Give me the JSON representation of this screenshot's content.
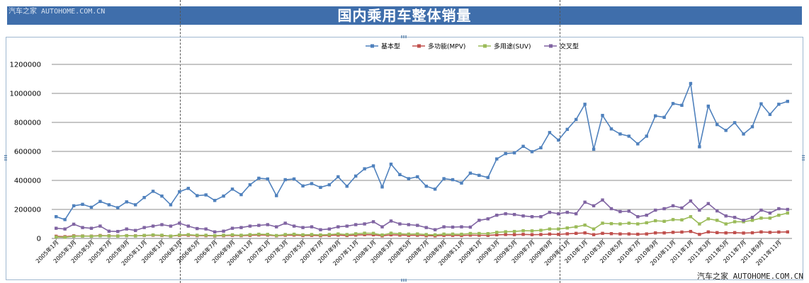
{
  "banner": {
    "title": "国内乘用车整体销量",
    "watermark": "汽车之家 AUTOHOME.COM.CN"
  },
  "footer": {
    "watermark": "汽车之家 AUTOHOME.COM.CN"
  },
  "colors": {
    "banner": "#3f6eab",
    "grid": "#808080"
  },
  "chart_data": {
    "type": "line",
    "title": "",
    "xlabel": "",
    "ylabel": "",
    "ylim": [
      0,
      1200000
    ],
    "yticks": [
      0,
      200000,
      400000,
      600000,
      800000,
      1000000,
      1200000
    ],
    "ytick_labels": [
      "0",
      "200000",
      "400000",
      "600000",
      "800000",
      "1000000",
      "1200000"
    ],
    "grid": true,
    "legend_position": "top-center",
    "x": [
      "2005年1月",
      "2005年2月",
      "2005年3月",
      "2005年4月",
      "2005年5月",
      "2005年6月",
      "2005年7月",
      "2005年8月",
      "2005年9月",
      "2005年10月",
      "2005年11月",
      "2005年12月",
      "2006年1月",
      "2006年2月",
      "2006年3月",
      "2006年4月",
      "2006年5月",
      "2006年6月",
      "2006年7月",
      "2006年8月",
      "2006年9月",
      "2006年10月",
      "2006年11月",
      "2006年12月",
      "2007年1月",
      "2007年2月",
      "2007年3月",
      "2007年4月",
      "2007年5月",
      "2007年6月",
      "2007年7月",
      "2007年8月",
      "2007年9月",
      "2007年10月",
      "2007年11月",
      "2007年12月",
      "2008年1月",
      "2008年2月",
      "2008年3月",
      "2008年4月",
      "2008年5月",
      "2008年6月",
      "2008年7月",
      "2008年8月",
      "2008年9月",
      "2008年10月",
      "2008年11月",
      "2008年12月",
      "2009年1月",
      "2009年2月",
      "2009年3月",
      "2009年4月",
      "2009年5月",
      "2009年6月",
      "2009年7月",
      "2009年8月",
      "2009年9月",
      "2009年10月",
      "2009年11月",
      "2009年12月",
      "2010年1月",
      "2010年2月",
      "2010年3月",
      "2010年4月",
      "2010年5月",
      "2010年6月",
      "2010年7月",
      "2010年8月",
      "2010年9月",
      "2010年10月",
      "2010年11月",
      "2010年12月",
      "2011年1月",
      "2011年2月",
      "2011年3月",
      "2011年4月",
      "2011年5月",
      "2011年6月",
      "2011年7月",
      "2011年8月",
      "2011年9月",
      "2011年10月",
      "2011年11月",
      "2011年12月"
    ],
    "x_tick_labels": [
      "2005年1月",
      "2005年3月",
      "2005年5月",
      "2005年7月",
      "2005年9月",
      "2005年11月",
      "2006年1月",
      "2006年3月",
      "2006年5月",
      "2006年7月",
      "2006年9月",
      "2006年11月",
      "2007年1月",
      "2007年3月",
      "2007年5月",
      "2007年7月",
      "2007年9月",
      "2007年11月",
      "2008年1月",
      "2008年3月",
      "2008年5月",
      "2008年7月",
      "2008年9月",
      "2008年11月",
      "2009年1月",
      "2009年3月",
      "2009年5月",
      "2009年7月",
      "2009年9月",
      "2009年11月",
      "2010年1月",
      "2010年3月",
      "2010年5月",
      "2010年7月",
      "2010年9月",
      "2010年11月",
      "2011年1月",
      "2011年3月",
      "2011年5月",
      "2011年7月",
      "2011年9月",
      "2011年11月"
    ],
    "series": [
      {
        "name": "基本型",
        "color": "#4f81bd",
        "marker": "square",
        "values": [
          150000,
          130000,
          225000,
          235000,
          215000,
          255000,
          232000,
          212000,
          252000,
          232000,
          282000,
          325000,
          292000,
          232000,
          322000,
          345000,
          295000,
          300000,
          262000,
          292000,
          340000,
          302000,
          370000,
          415000,
          410000,
          295000,
          405000,
          410000,
          362000,
          378000,
          352000,
          370000,
          425000,
          360000,
          430000,
          480000,
          500000,
          355000,
          512000,
          440000,
          412000,
          425000,
          360000,
          340000,
          412000,
          405000,
          382000,
          450000,
          435000,
          420000,
          548000,
          585000,
          590000,
          635000,
          598000,
          625000,
          730000,
          678000,
          752000,
          820000,
          925000,
          615000,
          848000,
          755000,
          720000,
          705000,
          652000,
          705000,
          845000,
          835000,
          930000,
          918000,
          1068000,
          632000,
          912000,
          785000,
          745000,
          798000,
          720000,
          770000,
          928000,
          855000,
          925000,
          945000
        ]
      },
      {
        "name": "多功能(MPV)",
        "color": "#c0504d",
        "marker": "square",
        "values": [
          15000,
          12000,
          18000,
          17000,
          16000,
          20000,
          18000,
          17000,
          19000,
          18000,
          20000,
          22000,
          20000,
          16000,
          21000,
          22000,
          19000,
          19000,
          17000,
          19000,
          21000,
          19000,
          21000,
          24000,
          23000,
          18000,
          22000,
          23000,
          20000,
          21000,
          19000,
          21000,
          23000,
          20000,
          23000,
          26000,
          25000,
          18000,
          25000,
          23000,
          21000,
          22000,
          19000,
          18000,
          21000,
          21000,
          20000,
          23000,
          22000,
          21000,
          25000,
          27000,
          26000,
          28000,
          26000,
          27000,
          30000,
          28000,
          32000,
          35000,
          38000,
          26000,
          35000,
          33000,
          31000,
          31000,
          29000,
          31000,
          38000,
          38000,
          42000,
          44000,
          48000,
          28000,
          45000,
          40000,
          38000,
          40000,
          37000,
          39000,
          45000,
          42000,
          44000,
          45000
        ]
      },
      {
        "name": "多用途(SUV)",
        "color": "#9bbb59",
        "marker": "square",
        "values": [
          10000,
          8000,
          15000,
          16000,
          15000,
          18000,
          17000,
          16000,
          19000,
          17000,
          21000,
          24000,
          22000,
          16000,
          24000,
          26000,
          22000,
          22000,
          19000,
          22000,
          25000,
          22000,
          26000,
          29000,
          28000,
          20000,
          27000,
          29000,
          25000,
          27000,
          24000,
          27000,
          31000,
          27000,
          32000,
          36000,
          35000,
          24000,
          36000,
          32000,
          30000,
          31000,
          27000,
          25000,
          30000,
          30000,
          29000,
          34000,
          34000,
          33000,
          42000,
          46000,
          48000,
          53000,
          52000,
          56000,
          65000,
          65000,
          72000,
          80000,
          92000,
          65000,
          105000,
          102000,
          100000,
          105000,
          100000,
          108000,
          122000,
          118000,
          130000,
          128000,
          150000,
          100000,
          135000,
          125000,
          100000,
          115000,
          115000,
          125000,
          140000,
          140000,
          160000,
          175000
        ]
      },
      {
        "name": "交叉型",
        "color": "#8064a2",
        "marker": "square",
        "values": [
          70000,
          65000,
          98000,
          75000,
          70000,
          85000,
          50000,
          48000,
          65000,
          55000,
          75000,
          85000,
          95000,
          85000,
          105000,
          85000,
          68000,
          65000,
          45000,
          50000,
          70000,
          75000,
          85000,
          90000,
          95000,
          80000,
          105000,
          85000,
          75000,
          80000,
          60000,
          65000,
          80000,
          85000,
          95000,
          100000,
          115000,
          80000,
          120000,
          100000,
          95000,
          90000,
          75000,
          60000,
          80000,
          78000,
          80000,
          78000,
          125000,
          135000,
          160000,
          170000,
          165000,
          155000,
          150000,
          150000,
          180000,
          170000,
          180000,
          170000,
          250000,
          225000,
          265000,
          205000,
          185000,
          188000,
          150000,
          160000,
          195000,
          205000,
          225000,
          210000,
          258000,
          195000,
          240000,
          190000,
          155000,
          145000,
          125000,
          145000,
          195000,
          175000,
          205000,
          200000
        ]
      }
    ]
  }
}
